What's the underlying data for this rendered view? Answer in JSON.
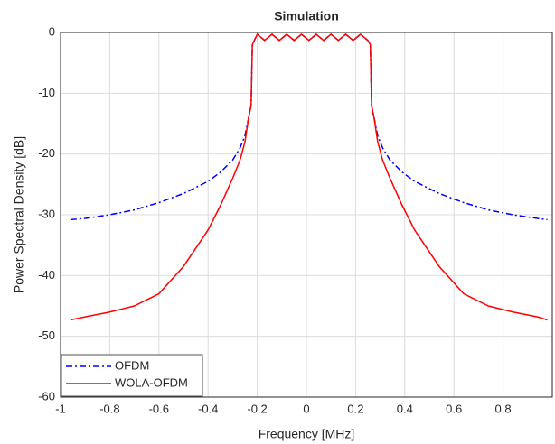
{
  "chart_data": {
    "type": "line",
    "title": "Simulation",
    "xlabel": "Frequency [MHz]",
    "ylabel": "Power Spectral Density [dB]",
    "xlim": [
      -1,
      1
    ],
    "ylim": [
      -60,
      0
    ],
    "xticks": [
      -1,
      -0.8,
      -0.6,
      -0.4,
      -0.2,
      0,
      0.2,
      0.4,
      0.6,
      0.8
    ],
    "yticks": [
      -60,
      -50,
      -40,
      -30,
      -20,
      -10,
      0
    ],
    "grid": true,
    "legend_position": "lower-left",
    "x": [
      -0.96,
      -0.9,
      -0.8,
      -0.7,
      -0.6,
      -0.5,
      -0.45,
      -0.4,
      -0.35,
      -0.3,
      -0.27,
      -0.25,
      -0.235,
      -0.225,
      -0.22,
      -0.2,
      -0.17,
      -0.14,
      -0.11,
      -0.08,
      -0.05,
      -0.02,
      0.01,
      0.04,
      0.07,
      0.1,
      0.13,
      0.16,
      0.19,
      0.22,
      0.25,
      0.26,
      0.265,
      0.275,
      0.29,
      0.31,
      0.34,
      0.39,
      0.44,
      0.49,
      0.54,
      0.64,
      0.74,
      0.84,
      0.94,
      0.98
    ],
    "series": [
      {
        "name": "OFDM",
        "color": "#0000ff",
        "linestyle": "dashdot",
        "values": [
          -30.8,
          -30.6,
          -30,
          -29.2,
          -28,
          -26.5,
          -25.5,
          -24.5,
          -23,
          -21,
          -19,
          -17,
          -14,
          -12,
          -2,
          -0.3,
          -1.3,
          -0.3,
          -1.3,
          -0.3,
          -1.3,
          -0.3,
          -1.3,
          -0.3,
          -1.3,
          -0.3,
          -1.3,
          -0.3,
          -1.3,
          -0.3,
          -1.3,
          -2,
          -12,
          -14,
          -17,
          -19,
          -21,
          -23,
          -24.5,
          -25.5,
          -26.5,
          -28,
          -29.2,
          -30,
          -30.6,
          -30.8
        ]
      },
      {
        "name": "WOLA-OFDM",
        "color": "#ff0000",
        "linestyle": "solid",
        "values": [
          -47.3,
          -46.8,
          -46,
          -45,
          -43,
          -38.5,
          -35.5,
          -32.5,
          -28.5,
          -24,
          -21,
          -18,
          -14,
          -12,
          -2,
          -0.3,
          -1.3,
          -0.3,
          -1.3,
          -0.3,
          -1.3,
          -0.3,
          -1.3,
          -0.3,
          -1.3,
          -0.3,
          -1.3,
          -0.3,
          -1.3,
          -0.3,
          -1.3,
          -2,
          -12,
          -14,
          -18,
          -21,
          -24,
          -28.5,
          -32.5,
          -35.5,
          -38.5,
          -43,
          -45,
          -46,
          -46.8,
          -47.3
        ]
      }
    ]
  }
}
